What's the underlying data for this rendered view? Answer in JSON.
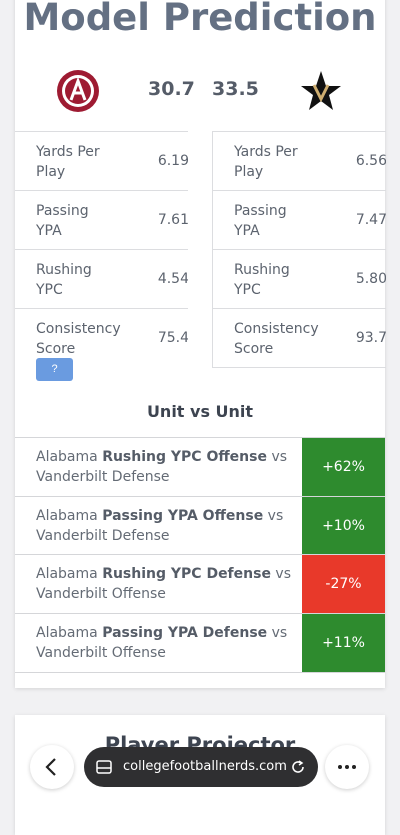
{
  "header": {
    "title": "Model Prediction"
  },
  "scores": {
    "home": "30.7",
    "away": "33.5"
  },
  "home_stats": [
    {
      "label": "Yards Per Play",
      "value": "6.19"
    },
    {
      "label": "Passing YPA",
      "value": "7.61"
    },
    {
      "label": "Rushing YPC",
      "value": "4.54"
    },
    {
      "label": "Consistency Score",
      "value": "75.4"
    }
  ],
  "help_button": "?",
  "away_stats": [
    {
      "label": "Yards Per Play",
      "value": "6.56"
    },
    {
      "label": "Passing YPA",
      "value": "7.47"
    },
    {
      "label": "Rushing YPC",
      "value": "5.80"
    },
    {
      "label": "Consistency Score",
      "value": "93.7"
    }
  ],
  "unit_vs_unit": {
    "title": "Unit vs Unit",
    "rows": [
      {
        "team": "Alabama",
        "unit": "Rushing YPC Offense",
        "rest": "vs Vanderbilt Defense",
        "value": "+62%",
        "color": "#2e8b2e"
      },
      {
        "team": "Alabama",
        "unit": "Passing YPA Offense",
        "rest": "vs Vanderbilt Defense",
        "value": "+10%",
        "color": "#2e8b2e"
      },
      {
        "team": "Alabama",
        "unit": "Rushing YPC Defense",
        "rest": "vs Vanderbilt Offense",
        "value": "-27%",
        "color": "#e8392a"
      },
      {
        "team": "Alabama",
        "unit": "Passing YPA Defense",
        "rest": "vs Vanderbilt Offense",
        "value": "+11%",
        "color": "#2e8b2e"
      }
    ]
  },
  "next_section": {
    "title": "Player Projector"
  },
  "browser": {
    "url": "collegefootballnerds.com"
  }
}
